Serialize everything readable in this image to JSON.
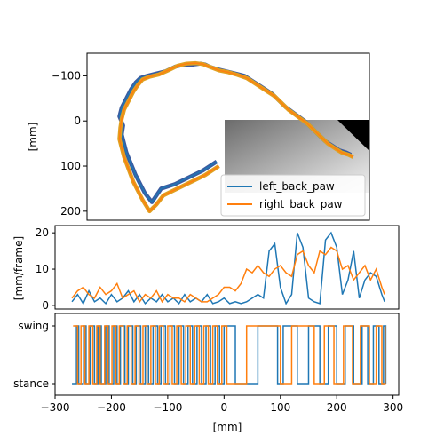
{
  "colors": {
    "left": "#1f77b4",
    "right": "#ff7f0e"
  },
  "chart_data": [
    {
      "type": "line",
      "panel": "trajectory",
      "ylabel": "[mm]",
      "xlim": [
        -300,
        310
      ],
      "ylim": [
        220,
        -150
      ],
      "y_inverted": true,
      "yticks": [
        -100,
        0,
        100,
        200
      ],
      "legend": {
        "placement": "lower-right",
        "entries": [
          "left_back_paw",
          "right_back_paw"
        ]
      },
      "inset": "grayscale video frame (bottom-right)",
      "series": [
        {
          "name": "left_back_paw",
          "x": [
            -20,
            -50,
            -80,
            -110,
            -140,
            -150,
            -160,
            -175,
            -195,
            -215,
            -225,
            -222,
            -230,
            -225,
            -215,
            -205,
            -195,
            -185,
            -170,
            -150,
            -130,
            -110,
            -90,
            -70,
            -55,
            -45,
            -35,
            -20,
            0,
            20,
            40,
            55,
            70,
            85,
            100,
            115,
            130,
            150,
            170,
            185,
            200,
            215,
            230,
            245,
            260,
            270
          ],
          "y": [
            90,
            110,
            125,
            140,
            150,
            165,
            180,
            160,
            120,
            70,
            30,
            10,
            -10,
            -30,
            -50,
            -70,
            -85,
            -95,
            -100,
            -105,
            -110,
            -120,
            -125,
            -125,
            -127,
            -125,
            -120,
            -115,
            -110,
            -105,
            -100,
            -90,
            -80,
            -70,
            -60,
            -45,
            -30,
            -15,
            0,
            15,
            30,
            45,
            55,
            65,
            70,
            75
          ]
        },
        {
          "name": "right_back_paw",
          "x": [
            -15,
            -45,
            -75,
            -105,
            -135,
            -150,
            -165,
            -180,
            -200,
            -220,
            -230,
            -228,
            -225,
            -220,
            -210,
            -200,
            -190,
            -180,
            -165,
            -145,
            -125,
            -105,
            -85,
            -65,
            -50,
            -40,
            -30,
            -15,
            5,
            25,
            45,
            60,
            75,
            90,
            105,
            120,
            135,
            155,
            175,
            190,
            205,
            220,
            235,
            250,
            265,
            275
          ],
          "y": [
            100,
            120,
            135,
            150,
            165,
            185,
            200,
            175,
            135,
            80,
            40,
            15,
            -5,
            -25,
            -45,
            -65,
            -80,
            -92,
            -98,
            -103,
            -112,
            -122,
            -127,
            -128,
            -126,
            -122,
            -118,
            -112,
            -108,
            -102,
            -95,
            -85,
            -75,
            -65,
            -55,
            -40,
            -25,
            -10,
            5,
            20,
            35,
            50,
            60,
            70,
            75,
            80
          ]
        }
      ]
    },
    {
      "type": "line",
      "panel": "speed",
      "ylabel": "[mm/frame]",
      "xlim": [
        -300,
        310
      ],
      "ylim": [
        -1,
        22
      ],
      "yticks": [
        0,
        10,
        20
      ],
      "series": [
        {
          "name": "left_back_paw",
          "x": [
            -270,
            -260,
            -250,
            -240,
            -230,
            -220,
            -210,
            -200,
            -190,
            -180,
            -170,
            -160,
            -150,
            -140,
            -130,
            -120,
            -110,
            -100,
            -90,
            -80,
            -70,
            -60,
            -50,
            -40,
            -30,
            -20,
            -10,
            0,
            10,
            20,
            30,
            40,
            50,
            60,
            70,
            80,
            90,
            100,
            110,
            120,
            130,
            140,
            150,
            160,
            170,
            180,
            190,
            200,
            210,
            220,
            230,
            240,
            250,
            260,
            270,
            280,
            285
          ],
          "y": [
            1,
            3,
            0.5,
            4,
            1,
            2,
            0.5,
            3,
            1,
            2,
            4,
            1,
            3,
            0.5,
            2,
            1,
            3,
            1,
            2,
            0.5,
            3,
            1,
            2,
            1,
            3,
            0.5,
            1,
            2,
            0.5,
            1,
            0.5,
            1,
            2,
            3,
            2,
            15,
            17,
            5,
            0.5,
            3,
            20,
            16,
            2,
            1,
            0.5,
            18,
            20,
            16,
            3,
            7,
            15,
            2,
            7,
            9,
            8,
            3,
            1
          ]
        },
        {
          "name": "right_back_paw",
          "x": [
            -270,
            -260,
            -250,
            -240,
            -230,
            -220,
            -210,
            -200,
            -190,
            -180,
            -170,
            -160,
            -150,
            -140,
            -130,
            -120,
            -110,
            -100,
            -90,
            -80,
            -70,
            -60,
            -50,
            -40,
            -30,
            -20,
            -10,
            0,
            10,
            20,
            30,
            40,
            50,
            60,
            70,
            80,
            90,
            100,
            110,
            120,
            130,
            140,
            150,
            160,
            170,
            180,
            190,
            200,
            210,
            220,
            230,
            240,
            250,
            260,
            270,
            280,
            285
          ],
          "y": [
            2,
            4,
            5,
            3,
            2,
            5,
            3,
            4,
            6,
            2,
            3,
            4,
            1,
            3,
            2,
            4,
            1,
            3,
            2,
            2,
            1,
            3,
            2,
            1,
            1,
            2,
            3,
            5,
            5,
            4,
            6,
            10,
            9,
            11,
            9,
            8,
            10,
            11,
            9,
            8,
            14,
            15,
            11,
            9,
            15,
            14,
            16,
            15,
            10,
            11,
            7,
            9,
            11,
            7,
            10,
            5,
            3
          ]
        }
      ]
    },
    {
      "type": "line",
      "panel": "gait phase",
      "xlabel": "[mm]",
      "xlim": [
        -300,
        310
      ],
      "xticks": [
        -300,
        -200,
        -100,
        0,
        100,
        200,
        300
      ],
      "yticks": [
        "stance",
        "swing"
      ],
      "series": [
        {
          "name": "left_back_paw",
          "x": [
            -270,
            -262,
            -258,
            -250,
            -245,
            -238,
            -230,
            -224,
            -218,
            -210,
            -204,
            -196,
            -190,
            -184,
            -176,
            -170,
            -162,
            -156,
            -148,
            -140,
            -134,
            -126,
            -118,
            -112,
            -104,
            -96,
            -88,
            -80,
            -72,
            -64,
            -56,
            -48,
            -40,
            -32,
            -24,
            -16,
            -8,
            0,
            20,
            60,
            95,
            105,
            130,
            150,
            170,
            185,
            200,
            215,
            230,
            245,
            255,
            265,
            275,
            283,
            287
          ],
          "y": [
            "stance",
            "swing",
            "stance",
            "swing",
            "stance",
            "swing",
            "stance",
            "swing",
            "stance",
            "swing",
            "stance",
            "swing",
            "stance",
            "swing",
            "stance",
            "swing",
            "stance",
            "swing",
            "stance",
            "swing",
            "stance",
            "swing",
            "stance",
            "swing",
            "stance",
            "swing",
            "stance",
            "swing",
            "stance",
            "swing",
            "stance",
            "swing",
            "stance",
            "swing",
            "stance",
            "swing",
            "stance",
            "swing",
            "stance",
            "swing",
            "stance",
            "swing",
            "stance",
            "swing",
            "stance",
            "swing",
            "stance",
            "swing",
            "stance",
            "swing",
            "stance",
            "swing",
            "stance",
            "swing",
            "stance"
          ]
        },
        {
          "name": "right_back_paw",
          "x": [
            -268,
            -260,
            -254,
            -247,
            -240,
            -233,
            -226,
            -220,
            -212,
            -206,
            -199,
            -192,
            -186,
            -179,
            -172,
            -165,
            -158,
            -151,
            -144,
            -137,
            -130,
            -122,
            -115,
            -108,
            -100,
            -92,
            -84,
            -76,
            -68,
            -60,
            -52,
            -44,
            -36,
            -28,
            -20,
            -12,
            -4,
            5,
            40,
            100,
            120,
            160,
            178,
            195,
            212,
            228,
            242,
            258,
            270,
            280,
            286
          ],
          "y": [
            "swing",
            "stance",
            "swing",
            "stance",
            "swing",
            "stance",
            "swing",
            "stance",
            "swing",
            "stance",
            "swing",
            "stance",
            "swing",
            "stance",
            "swing",
            "stance",
            "swing",
            "stance",
            "swing",
            "stance",
            "swing",
            "stance",
            "swing",
            "stance",
            "swing",
            "stance",
            "swing",
            "stance",
            "swing",
            "stance",
            "swing",
            "stance",
            "swing",
            "stance",
            "swing",
            "stance",
            "swing",
            "stance",
            "swing",
            "stance",
            "swing",
            "stance",
            "swing",
            "stance",
            "swing",
            "stance",
            "swing",
            "stance",
            "swing",
            "stance",
            "swing"
          ]
        }
      ]
    }
  ]
}
